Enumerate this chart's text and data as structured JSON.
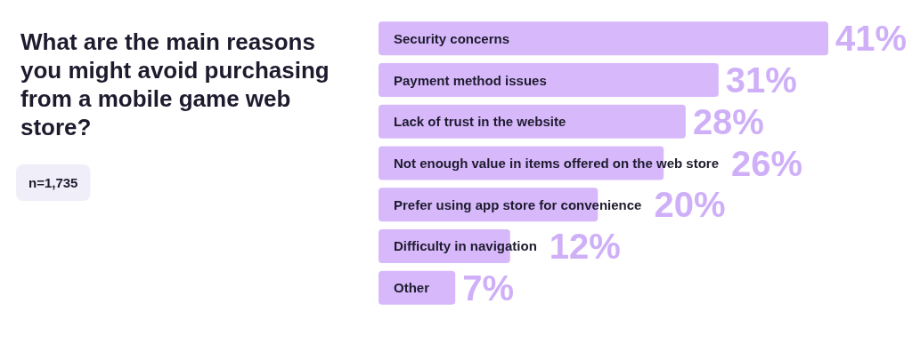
{
  "chart_data": {
    "type": "bar",
    "orientation": "horizontal",
    "title": "What are the main reasons you might avoid purchasing from a mobile game web store?",
    "annotations": [
      "n=1,735"
    ],
    "categories": [
      "Security concerns",
      "Payment method issues",
      "Lack of trust in the website",
      "Not enough value in items offered on the web store",
      "Prefer using app store for convenience",
      "Difficulty in navigation",
      "Other"
    ],
    "values": [
      41,
      31,
      28,
      26,
      20,
      12,
      7
    ],
    "value_labels": [
      "41%",
      "31%",
      "28%",
      "26%",
      "20%",
      "12%",
      "7%"
    ],
    "color": "#d7b9fb"
  }
}
